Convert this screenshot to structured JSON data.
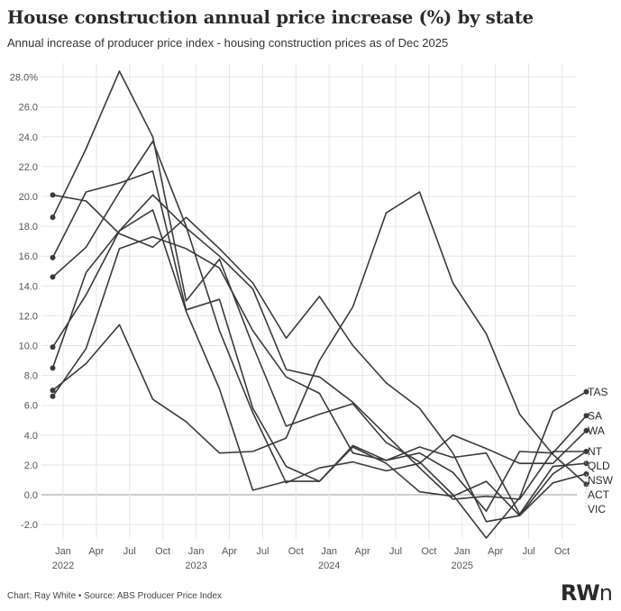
{
  "title": "House construction annual price increase (%) by state",
  "subtitle": "Annual increase of producer price index - housing construction prices as of Dec 2025",
  "footer": "Chart: Ray White • Source: ABS Producer Price Index",
  "logo": {
    "main": "RW",
    "suffix": "n"
  },
  "colors": {
    "line": "#3a3a3a",
    "grid": "#e6e6e6",
    "zero": "#999999",
    "text": "#555555"
  },
  "chart_data": {
    "type": "line",
    "x": [
      "2021-12",
      "2022-03",
      "2022-06",
      "2022-09",
      "2022-12",
      "2023-03",
      "2023-06",
      "2023-09",
      "2023-12",
      "2024-03",
      "2024-06",
      "2024-09",
      "2024-12",
      "2025-03",
      "2025-06",
      "2025-09",
      "2025-12"
    ],
    "x_ticks": [
      {
        "month": "Jan",
        "year": "2022"
      },
      {
        "month": "Apr",
        "year": ""
      },
      {
        "month": "Jul",
        "year": ""
      },
      {
        "month": "Oct",
        "year": ""
      },
      {
        "month": "Jan",
        "year": "2023"
      },
      {
        "month": "Apr",
        "year": ""
      },
      {
        "month": "Jul",
        "year": ""
      },
      {
        "month": "Oct",
        "year": ""
      },
      {
        "month": "Jan",
        "year": "2024"
      },
      {
        "month": "Apr",
        "year": ""
      },
      {
        "month": "Jul",
        "year": ""
      },
      {
        "month": "Oct",
        "year": ""
      },
      {
        "month": "Jan",
        "year": "2025"
      },
      {
        "month": "Apr",
        "year": ""
      },
      {
        "month": "Jul",
        "year": ""
      },
      {
        "month": "Oct",
        "year": ""
      }
    ],
    "y_ticks": [
      "28.0%",
      "26.0",
      "24.0",
      "22.0",
      "20.0",
      "18.0",
      "16.0",
      "14.0",
      "12.0",
      "10.0",
      "8.0",
      "6.0",
      "4.0",
      "2.0",
      "0.0",
      "-2.0"
    ],
    "ylim": [
      -3.5,
      29
    ],
    "grid": true,
    "series": [
      {
        "name": "TAS",
        "values": [
          18.6,
          23.2,
          28.4,
          24.0,
          13.0,
          15.8,
          10.0,
          4.6,
          5.4,
          6.1,
          3.5,
          2.2,
          0.0,
          -2.9,
          -0.2,
          5.6,
          6.9
        ]
      },
      {
        "name": "SA",
        "values": [
          15.9,
          20.3,
          20.9,
          21.7,
          12.4,
          13.1,
          5.8,
          1.9,
          0.9,
          3.3,
          2.3,
          2.8,
          1.5,
          -1.1,
          2.9,
          2.8,
          5.3
        ]
      },
      {
        "name": "WA",
        "values": [
          14.6,
          16.6,
          20.3,
          23.7,
          18.0,
          11.0,
          5.5,
          0.8,
          1.8,
          2.2,
          1.6,
          2.1,
          4.0,
          3.1,
          2.1,
          2.1,
          4.3
        ]
      },
      {
        "name": "NT",
        "values": [
          8.5,
          14.9,
          17.7,
          19.1,
          12.3,
          7.1,
          0.3,
          0.9,
          0.9,
          3.2,
          2.1,
          0.2,
          -0.1,
          0.9,
          -1.4,
          1.4,
          2.9
        ]
      },
      {
        "name": "QLD",
        "values": [
          9.9,
          13.4,
          17.7,
          20.1,
          17.9,
          16.0,
          13.8,
          8.4,
          7.9,
          6.2,
          4.0,
          1.8,
          -0.3,
          -0.1,
          -0.3,
          2.9,
          2.9
        ]
      },
      {
        "name": "NSW",
        "values": [
          6.6,
          9.8,
          16.5,
          17.3,
          16.5,
          15.2,
          11.0,
          7.9,
          6.8,
          2.8,
          2.3,
          3.2,
          2.5,
          2.8,
          -1.3,
          1.9,
          2.1
        ]
      },
      {
        "name": "ACT",
        "values": [
          20.1,
          19.7,
          17.5,
          16.6,
          18.6,
          16.5,
          14.2,
          10.5,
          13.3,
          10.0,
          7.5,
          5.8,
          2.8,
          -1.8,
          -1.4,
          0.8,
          1.4
        ]
      },
      {
        "name": "VIC",
        "values": [
          7.0,
          8.8,
          11.4,
          6.4,
          4.9,
          2.8,
          2.9,
          3.8,
          9.0,
          12.6,
          18.9,
          20.3,
          14.2,
          10.8,
          5.4,
          2.7,
          0.7
        ]
      }
    ]
  }
}
